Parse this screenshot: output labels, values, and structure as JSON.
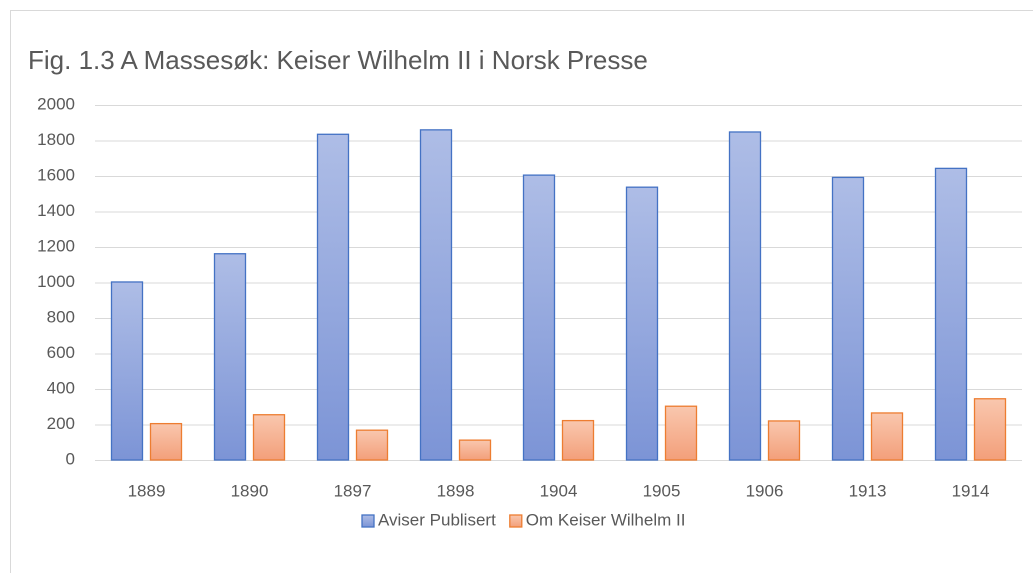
{
  "chart_data": {
    "type": "bar",
    "title": "Fig. 1.3 A Massesøk: Keiser Wilhelm II i Norsk Presse",
    "categories": [
      "1889",
      "1890",
      "1897",
      "1898",
      "1904",
      "1905",
      "1906",
      "1913",
      "1914"
    ],
    "series": [
      {
        "name": "Aviser Publisert",
        "color": "#4472c4",
        "values": [
          1003,
          1162,
          1835,
          1860,
          1605,
          1537,
          1848,
          1592,
          1643
        ]
      },
      {
        "name": "Om Keiser Wilhelm II",
        "color": "#ed7d31",
        "values": [
          205,
          255,
          168,
          112,
          222,
          303,
          220,
          265,
          345
        ]
      }
    ],
    "ylim": [
      0,
      2000
    ],
    "yticks": [
      0,
      200,
      400,
      600,
      800,
      1000,
      1200,
      1400,
      1600,
      1800,
      2000
    ],
    "grid": true,
    "legend": "bottom"
  }
}
